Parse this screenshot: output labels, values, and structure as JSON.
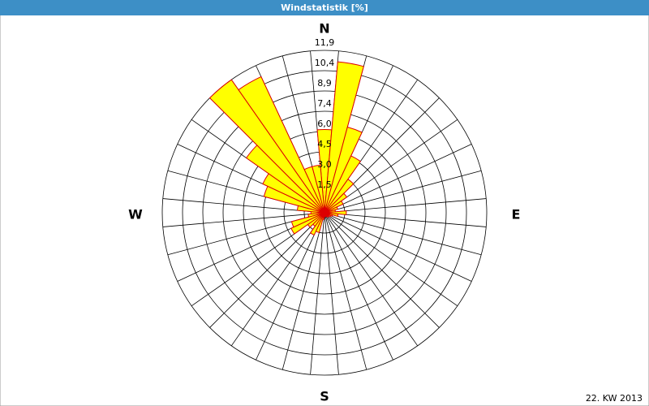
{
  "chart_data": {
    "type": "windrose",
    "title": "Windstatistik [%]",
    "footer": "22. KW 2013",
    "compass": {
      "north": "N",
      "east": "E",
      "south": "S",
      "west": "W"
    },
    "theta": [
      0,
      10,
      20,
      30,
      40,
      50,
      60,
      70,
      80,
      90,
      100,
      110,
      120,
      130,
      140,
      150,
      160,
      170,
      180,
      190,
      200,
      210,
      220,
      230,
      240,
      250,
      260,
      270,
      280,
      290,
      300,
      310,
      320,
      330,
      340,
      350
    ],
    "values": [
      6.1,
      11.1,
      6.5,
      4.6,
      3.0,
      2.0,
      1.5,
      1.0,
      0.8,
      1.6,
      1.0,
      0.6,
      0.5,
      0.4,
      0.4,
      0.3,
      0.3,
      0.3,
      0.3,
      0.5,
      1.5,
      1.8,
      1.2,
      1.5,
      2.7,
      2.5,
      1.2,
      1.0,
      2.0,
      4.6,
      5.0,
      7.0,
      11.9,
      11.0,
      3.5,
      3.5
    ],
    "color": "#ffff00",
    "edge_color": "#dd0000",
    "rlim": [
      0,
      11.9
    ],
    "rticks": [
      {
        "value": 1.4875,
        "label": "1,5"
      },
      {
        "value": 2.975,
        "label": "3,0"
      },
      {
        "value": 4.4625,
        "label": "4,5"
      },
      {
        "value": 5.95,
        "label": "6,0"
      },
      {
        "value": 7.4375,
        "label": "7,4"
      },
      {
        "value": 8.925,
        "label": "8,9"
      },
      {
        "value": 10.4125,
        "label": "10,4"
      },
      {
        "value": 11.9,
        "label": "11,9"
      }
    ]
  }
}
